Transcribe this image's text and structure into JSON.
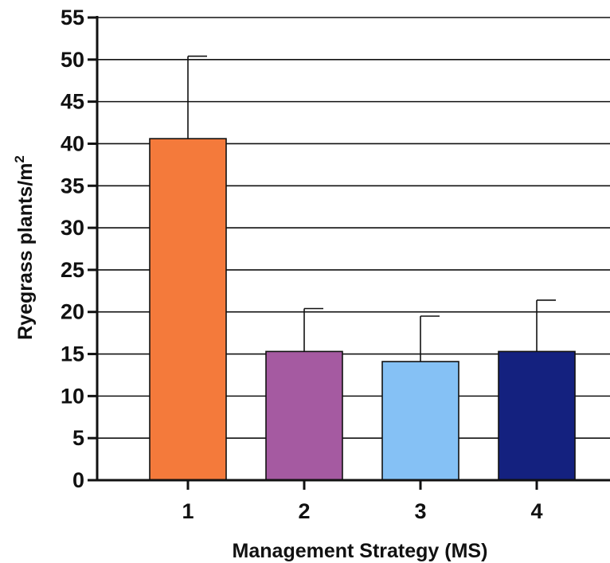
{
  "chart_data": {
    "type": "bar",
    "categories": [
      "1",
      "2",
      "3",
      "4"
    ],
    "values": [
      40.6,
      15.3,
      14.1,
      15.3
    ],
    "error_upper": [
      50.4,
      20.4,
      19.5,
      21.4
    ],
    "colors": [
      "#F47A3B",
      "#A55AA1",
      "#85C1F5",
      "#14217F"
    ],
    "title": "",
    "xlabel": "Management  Strategy (MS)",
    "ylabel_main": "Ryegrass plants/m",
    "ylabel_superscript": "2",
    "ylim": [
      0,
      55
    ],
    "yticks": [
      "0",
      "5",
      "10",
      "15",
      "20",
      "25",
      "30",
      "35",
      "40",
      "45",
      "50",
      "55"
    ],
    "grid": true
  }
}
